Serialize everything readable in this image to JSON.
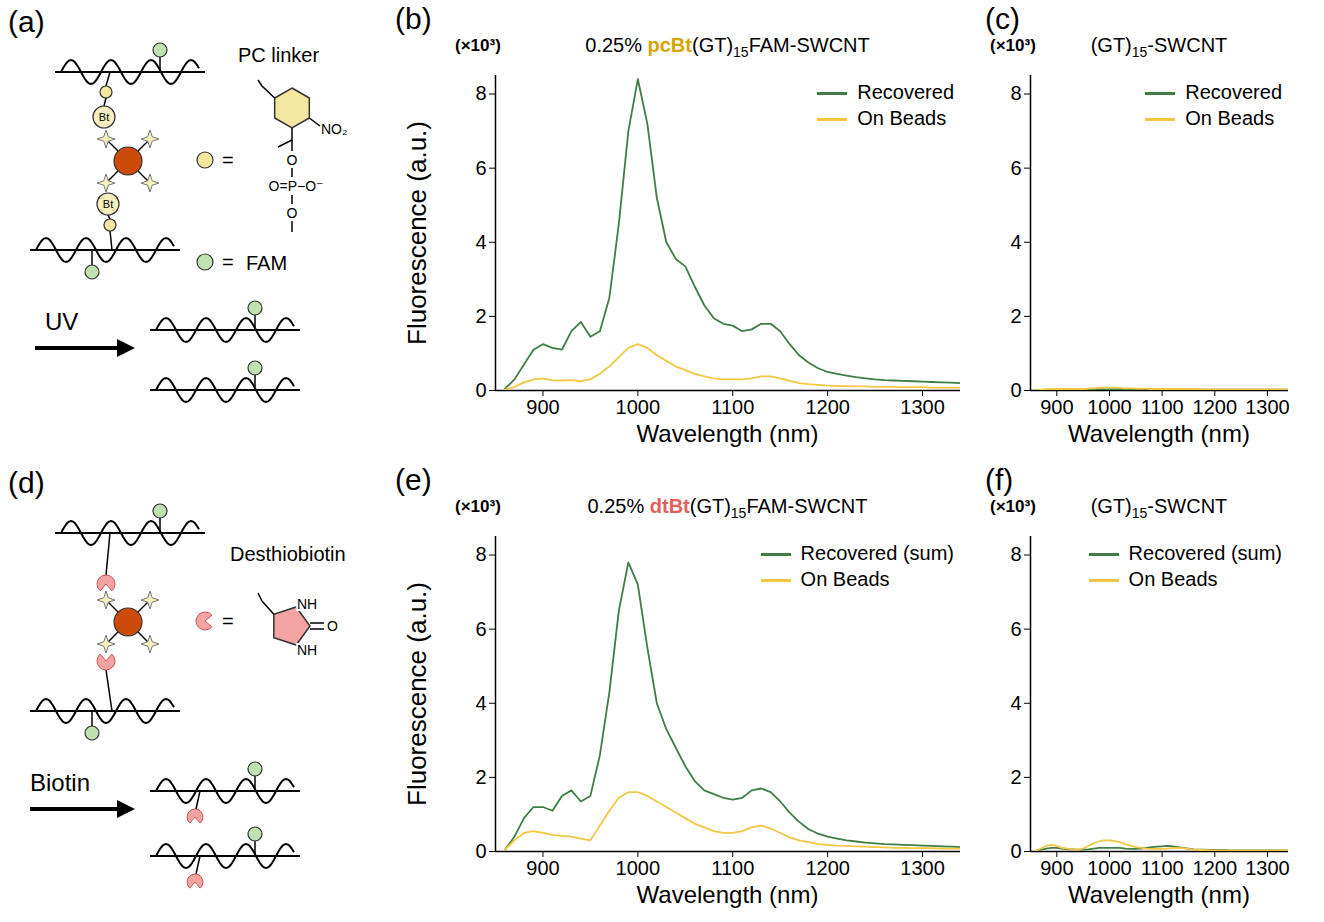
{
  "chart_data": [
    {
      "panel": "(b)",
      "type": "line",
      "title": "0.25% pcBt(GT)15FAM-SWCNT",
      "highlight": {
        "text": "pcBt",
        "color": "#d9a400"
      },
      "x_label": "Wavelength (nm)",
      "y_label": "Fluorescence (a.u.)",
      "y_multiplier_label": "(×10³)",
      "xlim": [
        850,
        1340
      ],
      "xticks": [
        900,
        1000,
        1100,
        1200,
        1300
      ],
      "ylim": [
        0,
        8.5
      ],
      "yticks": [
        0,
        2,
        4,
        6,
        8
      ],
      "legend": "upper right",
      "x": [
        860,
        870,
        880,
        890,
        900,
        910,
        920,
        930,
        940,
        950,
        960,
        970,
        980,
        990,
        1000,
        1010,
        1020,
        1030,
        1040,
        1050,
        1060,
        1070,
        1080,
        1090,
        1100,
        1110,
        1120,
        1130,
        1140,
        1150,
        1160,
        1170,
        1180,
        1190,
        1200,
        1210,
        1220,
        1230,
        1240,
        1250,
        1260,
        1270,
        1280,
        1290,
        1300,
        1310,
        1320,
        1330,
        1340
      ],
      "series": [
        {
          "name": "Recovered",
          "color": "#3f7d45",
          "values": [
            0.05,
            0.3,
            0.7,
            1.1,
            1.25,
            1.15,
            1.1,
            1.6,
            1.85,
            1.45,
            1.6,
            2.5,
            4.5,
            7,
            8.4,
            7.2,
            5.2,
            4.0,
            3.55,
            3.35,
            2.8,
            2.3,
            1.95,
            1.8,
            1.75,
            1.6,
            1.65,
            1.8,
            1.8,
            1.6,
            1.25,
            0.95,
            0.75,
            0.6,
            0.5,
            0.45,
            0.4,
            0.36,
            0.33,
            0.3,
            0.28,
            0.27,
            0.26,
            0.25,
            0.24,
            0.23,
            0.22,
            0.21,
            0.2
          ]
        },
        {
          "name": "On Beads",
          "color": "#f2c744",
          "values": [
            0.02,
            0.1,
            0.22,
            0.3,
            0.32,
            0.28,
            0.27,
            0.28,
            0.25,
            0.3,
            0.45,
            0.65,
            0.9,
            1.15,
            1.25,
            1.15,
            0.95,
            0.8,
            0.65,
            0.55,
            0.45,
            0.38,
            0.33,
            0.3,
            0.3,
            0.3,
            0.33,
            0.38,
            0.38,
            0.33,
            0.26,
            0.2,
            0.17,
            0.15,
            0.13,
            0.12,
            0.12,
            0.11,
            0.11,
            0.1,
            0.1,
            0.1,
            0.09,
            0.09,
            0.09,
            0.08,
            0.08,
            0.08,
            0.08
          ]
        }
      ]
    },
    {
      "panel": "(c)",
      "type": "line",
      "title": "(GT)15-SWCNT",
      "x_label": "Wavelength (nm)",
      "y_multiplier_label": "(×10³)",
      "xlim": [
        850,
        1340
      ],
      "xticks": [
        900,
        1000,
        1100,
        1200,
        1300
      ],
      "ylim": [
        0,
        8.5
      ],
      "yticks": [
        0,
        2,
        4,
        6,
        8
      ],
      "legend": "upper right",
      "x": [
        860,
        870,
        880,
        890,
        900,
        910,
        920,
        930,
        940,
        950,
        960,
        970,
        980,
        990,
        1000,
        1010,
        1020,
        1030,
        1040,
        1050,
        1060,
        1070,
        1080,
        1090,
        1100,
        1110,
        1120,
        1130,
        1140,
        1150,
        1160,
        1170,
        1180,
        1190,
        1200,
        1210,
        1220,
        1230,
        1240,
        1250,
        1260,
        1270,
        1280,
        1290,
        1300,
        1310,
        1320,
        1330,
        1340
      ],
      "series": [
        {
          "name": "Recovered",
          "color": "#3f7d45",
          "values": [
            0,
            0.01,
            0.02,
            0.02,
            0.02,
            0.02,
            0.02,
            0.02,
            0.02,
            0.02,
            0.02,
            0.03,
            0.03,
            0.03,
            0.03,
            0.03,
            0.03,
            0.03,
            0.02,
            0.02,
            0.02,
            0.02,
            0.02,
            0.02,
            0.02,
            0.02,
            0.02,
            0.02,
            0.02,
            0.02,
            0.02,
            0.02,
            0.02,
            0.02,
            0.02,
            0.02,
            0.02,
            0.02,
            0.02,
            0.02,
            0.02,
            0.02,
            0.02,
            0.02,
            0.02,
            0.02,
            0.02,
            0.02,
            0.02
          ]
        },
        {
          "name": "On Beads",
          "color": "#f2c744",
          "values": [
            0,
            0.02,
            0.03,
            0.04,
            0.04,
            0.04,
            0.04,
            0.04,
            0.04,
            0.04,
            0.05,
            0.06,
            0.07,
            0.08,
            0.08,
            0.08,
            0.07,
            0.06,
            0.06,
            0.05,
            0.05,
            0.05,
            0.04,
            0.04,
            0.04,
            0.04,
            0.04,
            0.04,
            0.04,
            0.04,
            0.04,
            0.03,
            0.03,
            0.03,
            0.03,
            0.03,
            0.03,
            0.03,
            0.03,
            0.03,
            0.03,
            0.03,
            0.03,
            0.03,
            0.03,
            0.03,
            0.03,
            0.03,
            0.03
          ]
        }
      ]
    },
    {
      "panel": "(e)",
      "type": "line",
      "title": "0.25% dtBt(GT)15FAM-SWCNT",
      "highlight": {
        "text": "dtBt",
        "color": "#e0605e"
      },
      "x_label": "Wavelength (nm)",
      "y_label": "Fluorescence (a.u.)",
      "y_multiplier_label": "(×10³)",
      "xlim": [
        850,
        1340
      ],
      "xticks": [
        900,
        1000,
        1100,
        1200,
        1300
      ],
      "ylim": [
        0,
        8.5
      ],
      "yticks": [
        0,
        2,
        4,
        6,
        8
      ],
      "legend": "upper right",
      "x": [
        860,
        870,
        880,
        890,
        900,
        910,
        920,
        930,
        940,
        950,
        960,
        970,
        980,
        990,
        1000,
        1010,
        1020,
        1030,
        1040,
        1050,
        1060,
        1070,
        1080,
        1090,
        1100,
        1110,
        1120,
        1130,
        1140,
        1150,
        1160,
        1170,
        1180,
        1190,
        1200,
        1210,
        1220,
        1230,
        1240,
        1250,
        1260,
        1270,
        1280,
        1290,
        1300,
        1310,
        1320,
        1330,
        1340
      ],
      "series": [
        {
          "name": "Recovered (sum)",
          "color": "#3f7d45",
          "values": [
            0.05,
            0.4,
            0.9,
            1.2,
            1.2,
            1.1,
            1.5,
            1.65,
            1.35,
            1.5,
            2.6,
            4.3,
            6.5,
            7.8,
            7.2,
            5.5,
            4.0,
            3.3,
            2.8,
            2.3,
            1.9,
            1.65,
            1.55,
            1.45,
            1.4,
            1.45,
            1.65,
            1.7,
            1.6,
            1.35,
            1.05,
            0.8,
            0.6,
            0.48,
            0.4,
            0.35,
            0.3,
            0.27,
            0.24,
            0.22,
            0.2,
            0.19,
            0.18,
            0.17,
            0.16,
            0.15,
            0.14,
            0.13,
            0.12
          ]
        },
        {
          "name": "On Beads",
          "color": "#f2c744",
          "values": [
            0.05,
            0.3,
            0.5,
            0.55,
            0.5,
            0.45,
            0.42,
            0.4,
            0.35,
            0.3,
            0.7,
            1.1,
            1.45,
            1.6,
            1.6,
            1.5,
            1.35,
            1.2,
            1.05,
            0.9,
            0.75,
            0.65,
            0.55,
            0.5,
            0.5,
            0.55,
            0.65,
            0.7,
            0.62,
            0.5,
            0.38,
            0.3,
            0.25,
            0.2,
            0.18,
            0.16,
            0.15,
            0.14,
            0.13,
            0.12,
            0.11,
            0.1,
            0.1,
            0.09,
            0.09,
            0.09,
            0.08,
            0.08,
            0.08
          ]
        }
      ]
    },
    {
      "panel": "(f)",
      "type": "line",
      "title": "(GT)15-SWCNT",
      "x_label": "Wavelength (nm)",
      "y_multiplier_label": "(×10³)",
      "xlim": [
        850,
        1340
      ],
      "xticks": [
        900,
        1000,
        1100,
        1200,
        1300
      ],
      "ylim": [
        0,
        8.5
      ],
      "yticks": [
        0,
        2,
        4,
        6,
        8
      ],
      "legend": "upper right",
      "x": [
        860,
        870,
        880,
        890,
        900,
        910,
        920,
        930,
        940,
        950,
        960,
        970,
        980,
        990,
        1000,
        1010,
        1020,
        1030,
        1040,
        1050,
        1060,
        1070,
        1080,
        1090,
        1100,
        1110,
        1120,
        1130,
        1140,
        1150,
        1160,
        1170,
        1180,
        1190,
        1200,
        1210,
        1220,
        1230,
        1240,
        1250,
        1260,
        1270,
        1280,
        1290,
        1300,
        1310,
        1320,
        1330,
        1340
      ],
      "series": [
        {
          "name": "Recovered (sum)",
          "color": "#3f7d45",
          "values": [
            0.02,
            0.05,
            0.08,
            0.1,
            0.1,
            0.08,
            0.06,
            0.06,
            0.05,
            0.05,
            0.06,
            0.08,
            0.1,
            0.1,
            0.1,
            0.1,
            0.1,
            0.08,
            0.07,
            0.07,
            0.08,
            0.1,
            0.12,
            0.13,
            0.14,
            0.15,
            0.14,
            0.12,
            0.1,
            0.08,
            0.06,
            0.05,
            0.05,
            0.04,
            0.04,
            0.04,
            0.04,
            0.03,
            0.03,
            0.03,
            0.03,
            0.03,
            0.03,
            0.03,
            0.03,
            0.03,
            0.03,
            0.03,
            0.03
          ]
        },
        {
          "name": "On Beads",
          "color": "#f2c744",
          "values": [
            0.02,
            0.08,
            0.15,
            0.18,
            0.15,
            0.1,
            0.08,
            0.06,
            0.05,
            0.08,
            0.15,
            0.22,
            0.27,
            0.3,
            0.3,
            0.28,
            0.25,
            0.2,
            0.16,
            0.12,
            0.1,
            0.08,
            0.07,
            0.07,
            0.07,
            0.08,
            0.09,
            0.1,
            0.09,
            0.07,
            0.05,
            0.04,
            0.04,
            0.03,
            0.03,
            0.03,
            0.03,
            0.03,
            0.03,
            0.03,
            0.03,
            0.03,
            0.03,
            0.03,
            0.03,
            0.03,
            0.03,
            0.03,
            0.03
          ]
        }
      ]
    }
  ],
  "diagrams": [
    {
      "panel": "(a)",
      "linker_label": "PC linker",
      "fam_label": "FAM",
      "equals": "=",
      "bead_label": "Bt",
      "structure_labels": [
        "NO₂",
        "O",
        "O=P−O⁻",
        "O"
      ],
      "arrow_label": "UV"
    },
    {
      "panel": "(d)",
      "desthiobiotin_label": "Desthiobiotin",
      "equals": "=",
      "structure_labels": [
        "NH",
        "O",
        "NH"
      ],
      "arrow_label": "Biotin"
    }
  ]
}
